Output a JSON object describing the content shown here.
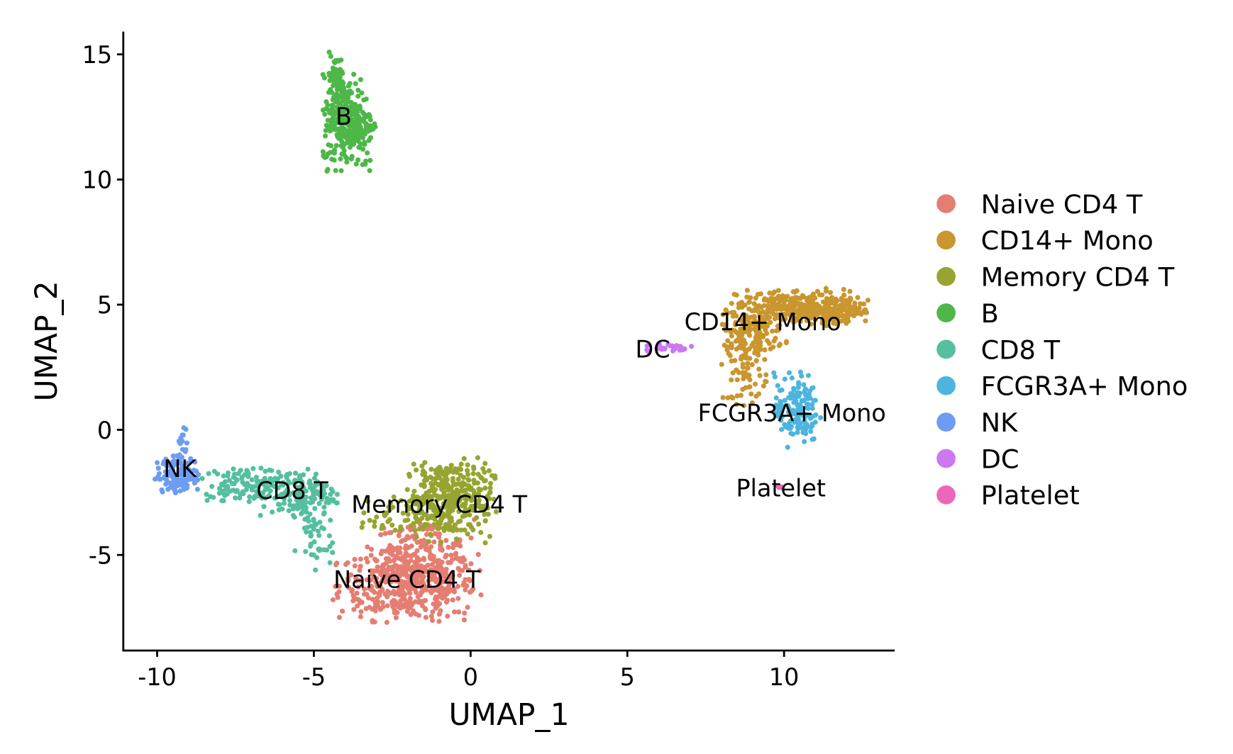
{
  "chart_data": {
    "type": "scatter",
    "title": "",
    "xlabel": "UMAP_1",
    "ylabel": "UMAP_2",
    "xlim": [
      -11.08,
      13.53
    ],
    "ylim": [
      -8.82,
      15.91
    ],
    "xticks": [
      -10,
      -5,
      0,
      5,
      10
    ],
    "yticks": [
      -5,
      0,
      5,
      10,
      15
    ],
    "xtick_labels": [
      "-10",
      "-5",
      "0",
      "5",
      "10"
    ],
    "ytick_labels": [
      "-5",
      "0",
      "5",
      "10",
      "15"
    ],
    "grid": false,
    "legend_placement": "right",
    "clusters": [
      {
        "name": "Naive CD4 T",
        "color": "#E57E72",
        "label_at": [
          -2.03,
          -6.0
        ],
        "regions": [
          [
            -2.0,
            -6.2,
            1.1,
            0.7,
            450
          ],
          [
            -1.5,
            -4.8,
            0.8,
            0.6,
            150
          ]
        ]
      },
      {
        "name": "CD14+ Mono",
        "color": "#C9962F",
        "label_at": [
          9.32,
          4.3
        ],
        "regions": [
          [
            10.5,
            4.9,
            1.0,
            0.35,
            300
          ],
          [
            9.0,
            4.0,
            0.5,
            0.5,
            150
          ],
          [
            8.8,
            2.5,
            0.35,
            0.7,
            80
          ],
          [
            11.8,
            4.7,
            0.4,
            0.25,
            60
          ]
        ]
      },
      {
        "name": "Memory CD4 T",
        "color": "#97A431",
        "label_at": [
          -1.0,
          -3.0
        ],
        "regions": [
          [
            -0.7,
            -2.8,
            0.7,
            0.8,
            350
          ],
          [
            -2.5,
            -3.5,
            0.5,
            0.4,
            40
          ]
        ]
      },
      {
        "name": "B",
        "color": "#4DB748",
        "label_at": [
          -4.05,
          12.5
        ],
        "regions": [
          [
            -3.9,
            12.3,
            0.4,
            0.9,
            300
          ],
          [
            -4.3,
            14.0,
            0.15,
            0.5,
            60
          ]
        ]
      },
      {
        "name": "CD8 T",
        "color": "#55BFA0",
        "label_at": [
          -5.69,
          -2.45
        ],
        "regions": [
          [
            -7.3,
            -2.2,
            0.6,
            0.35,
            100
          ],
          [
            -5.5,
            -2.6,
            0.6,
            0.5,
            150
          ],
          [
            -5.0,
            -4.3,
            0.3,
            0.6,
            40
          ]
        ]
      },
      {
        "name": "FCGR3A+ Mono",
        "color": "#4DB4DE",
        "label_at": [
          10.25,
          0.65
        ],
        "regions": [
          [
            10.4,
            0.8,
            0.35,
            0.7,
            150
          ]
        ]
      },
      {
        "name": "NK",
        "color": "#6E9CF3",
        "label_at": [
          -9.27,
          -1.56
        ],
        "regions": [
          [
            -9.3,
            -1.8,
            0.35,
            0.35,
            150
          ],
          [
            -9.2,
            -0.5,
            0.07,
            0.4,
            15
          ]
        ]
      },
      {
        "name": "DC",
        "color": "#CB78F1",
        "label_at": [
          5.81,
          3.2
        ],
        "regions": [
          [
            6.2,
            3.3,
            0.4,
            0.08,
            25
          ]
        ]
      },
      {
        "name": "Platelet",
        "color": "#EC67BA",
        "label_at": [
          9.9,
          -2.35
        ],
        "regions": [
          [
            9.9,
            -2.3,
            0.05,
            0.05,
            5
          ]
        ]
      }
    ]
  }
}
